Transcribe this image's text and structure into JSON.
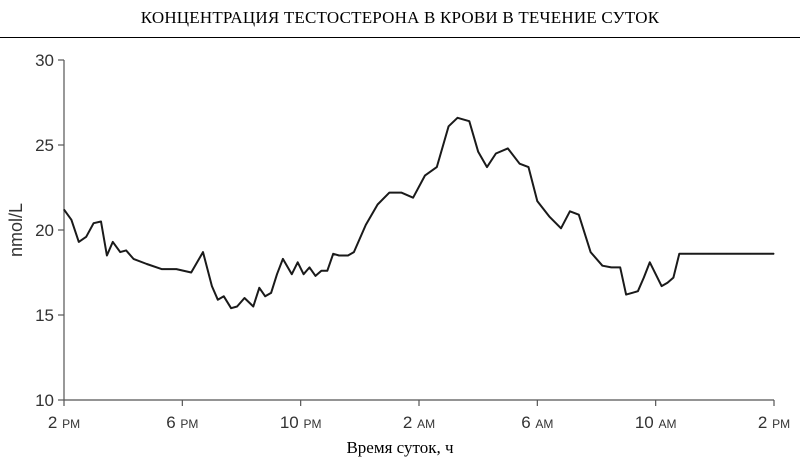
{
  "chart_data": {
    "type": "line",
    "title": "КОНЦЕНТРАЦИЯ ТЕСТОСТЕРОНА В КРОВИ В ТЕЧЕНИЕ СУТОК",
    "xlabel": "Время суток, ч",
    "ylabel": "nmol/L",
    "ylim": [
      10,
      30
    ],
    "yticks": [
      "30",
      "25",
      "20",
      "15",
      "10"
    ],
    "xlim": [
      0,
      24
    ],
    "xticks": [
      {
        "value": 0,
        "num": "2",
        "suffix": "PM"
      },
      {
        "value": 4,
        "num": "6",
        "suffix": "PM"
      },
      {
        "value": 8,
        "num": "10",
        "suffix": "PM"
      },
      {
        "value": 12,
        "num": "2",
        "suffix": "AM"
      },
      {
        "value": 16,
        "num": "6",
        "suffix": "AM"
      },
      {
        "value": 20,
        "num": "10",
        "suffix": "AM"
      },
      {
        "value": 24,
        "num": "2",
        "suffix": "PM"
      }
    ],
    "x_unit": "hours after 2 PM",
    "grid": false,
    "series": [
      {
        "color": "#1a1a1a",
        "x": [
          0,
          0.25,
          0.5,
          0.75,
          1.0,
          1.25,
          1.45,
          1.65,
          1.9,
          2.1,
          2.35,
          2.8,
          3.3,
          3.8,
          4.3,
          4.7,
          5.0,
          5.2,
          5.4,
          5.65,
          5.85,
          6.1,
          6.4,
          6.6,
          6.8,
          7.0,
          7.2,
          7.4,
          7.7,
          7.9,
          8.1,
          8.3,
          8.5,
          8.7,
          8.9,
          9.1,
          9.3,
          9.6,
          9.8,
          10.2,
          10.6,
          11.0,
          11.4,
          11.8,
          12.2,
          12.6,
          13.0,
          13.3,
          13.7,
          14.0,
          14.3,
          14.6,
          15.0,
          15.4,
          15.7,
          16.0,
          16.4,
          16.8,
          17.1,
          17.4,
          17.8,
          18.2,
          18.5,
          18.8,
          19.0,
          19.2,
          19.4,
          19.6,
          19.8,
          20.0,
          20.2,
          20.4,
          20.6,
          20.8,
          21.0,
          21.2,
          21.6,
          21.8,
          22.0,
          22.4,
          22.8,
          23.2,
          23.6,
          24.0
        ],
        "y": [
          21.2,
          20.6,
          19.3,
          19.6,
          20.4,
          20.5,
          18.5,
          19.3,
          18.7,
          18.8,
          18.3,
          18.0,
          17.7,
          17.7,
          17.5,
          18.7,
          16.7,
          15.9,
          16.1,
          15.4,
          15.5,
          16.0,
          15.5,
          16.6,
          16.1,
          16.3,
          17.4,
          18.3,
          17.4,
          18.1,
          17.4,
          17.8,
          17.3,
          17.6,
          17.6,
          18.6,
          18.5,
          18.5,
          18.7,
          20.3,
          21.5,
          22.2,
          22.2,
          21.9,
          23.2,
          23.7,
          26.1,
          26.6,
          26.4,
          24.6,
          23.7,
          24.5,
          24.8,
          23.9,
          23.7,
          21.7,
          20.8,
          20.1,
          21.1,
          20.9,
          18.7,
          17.9,
          17.8,
          17.8,
          16.2,
          16.3,
          16.4,
          17.2,
          18.1,
          17.4,
          16.7,
          16.9,
          17.2,
          18.6,
          18.6,
          18.6,
          18.6,
          18.6,
          18.6,
          18.6,
          18.6,
          18.6,
          18.6,
          18.6
        ]
      }
    ]
  }
}
